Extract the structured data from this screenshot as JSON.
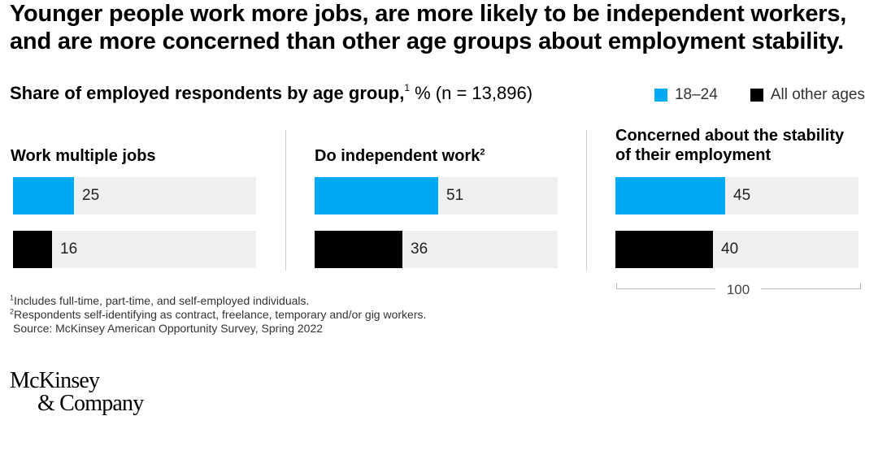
{
  "title": "Younger people work more jobs, are more likely to be independent workers, and are more concerned than other age groups about employment stability.",
  "subtitle": {
    "bold": "Share of employed respondents by age group,",
    "sup": "1",
    "rest": " % (n = 13,896)"
  },
  "legend": {
    "young": "18–24",
    "other": "All other ages"
  },
  "colors": {
    "young": "#00a9f4",
    "other": "#000000",
    "track": "#efefef"
  },
  "scale_label": "100",
  "chart_data": {
    "type": "bar",
    "series_names": [
      "18–24",
      "All other ages"
    ],
    "scale_max": 100,
    "panels": [
      {
        "title": "Work multiple jobs",
        "sup": "",
        "values": [
          25,
          16
        ]
      },
      {
        "title": "Do independent work",
        "sup": "2",
        "values": [
          51,
          36
        ]
      },
      {
        "title": "Concerned about the stability of their employment",
        "sup": "",
        "values": [
          45,
          40
        ]
      }
    ]
  },
  "notes": {
    "n1_sup": "1",
    "n1": "Includes full-time, part-time, and self-employed individuals.",
    "n2_sup": "2",
    "n2": "Respondents self-identifying as contract, freelance, temporary and/or gig workers.",
    "source": "Source: McKinsey American Opportunity Survey, Spring 2022"
  },
  "logo": {
    "line1": "McKinsey",
    "line2": "& Company"
  }
}
